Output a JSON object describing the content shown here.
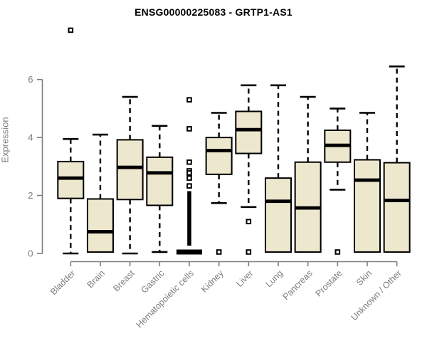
{
  "chart_data": {
    "type": "boxplot",
    "title": "ENSG00000225083 - GRTP1-AS1",
    "ylabel": "Expression",
    "xlabel": "",
    "yticks": [
      0,
      2,
      4,
      6
    ],
    "ylim": [
      0,
      6.6
    ],
    "grid": false,
    "legend": "none",
    "categories": [
      "Bladder",
      "Brain",
      "Breast",
      "Gastric",
      "Hematopoietic cells",
      "Kidney",
      "Liver",
      "Lung",
      "Pancreas",
      "Prostate",
      "Skin",
      "Unknown / Other"
    ],
    "series": [
      {
        "label": "Bladder",
        "low": 0,
        "q1": 1.9,
        "median": 2.6,
        "q3": 3.17,
        "high": 3.95,
        "outliers": [
          7.7
        ]
      },
      {
        "label": "Brain",
        "low": 0.05,
        "q1": 0.05,
        "median": 0.75,
        "q3": 1.88,
        "high": 4.1,
        "outliers": []
      },
      {
        "label": "Breast",
        "low": 0,
        "q1": 1.86,
        "median": 2.97,
        "q3": 3.92,
        "high": 5.4,
        "outliers": []
      },
      {
        "label": "Gastric",
        "low": 0.05,
        "q1": 1.66,
        "median": 2.78,
        "q3": 3.32,
        "high": 4.4,
        "outliers": []
      },
      {
        "label": "Hematopoietic cells",
        "low": 0.05,
        "q1": 0.05,
        "median": 0.05,
        "q3": 0.05,
        "high": 0.05,
        "outliers": [
          5.3,
          4.3,
          3.15,
          2.85,
          2.78,
          2.6,
          2.33
        ],
        "dense_outlier_range": {
          "from": 2.15,
          "to": 0.27
        }
      },
      {
        "label": "Kidney",
        "low": 1.74,
        "q1": 2.73,
        "median": 3.55,
        "q3": 4.0,
        "high": 4.85,
        "outliers": [
          0.05
        ]
      },
      {
        "label": "Liver",
        "low": 1.6,
        "q1": 3.45,
        "median": 4.27,
        "q3": 4.9,
        "high": 5.8,
        "outliers": [
          1.1,
          0.05
        ]
      },
      {
        "label": "Lung",
        "low": 0.05,
        "q1": 0.05,
        "median": 1.8,
        "q3": 2.6,
        "high": 5.8,
        "outliers": []
      },
      {
        "label": "Pancreas",
        "low": 0.05,
        "q1": 0.05,
        "median": 1.57,
        "q3": 3.15,
        "high": 5.4,
        "outliers": []
      },
      {
        "label": "Prostate",
        "low": 2.2,
        "q1": 3.15,
        "median": 3.73,
        "q3": 4.25,
        "high": 5.0,
        "outliers": [
          0.05
        ]
      },
      {
        "label": "Skin",
        "low": 0.05,
        "q1": 0.05,
        "median": 2.53,
        "q3": 3.23,
        "high": 4.85,
        "outliers": []
      },
      {
        "label": "Unknown / Other",
        "low": 0.05,
        "q1": 0.05,
        "median": 1.83,
        "q3": 3.13,
        "high": 6.45,
        "outliers": []
      }
    ],
    "colors": {
      "box_fill": "#ede7ce",
      "box_stroke": "#000000",
      "median": "#000000",
      "whisker": "#000000",
      "outlier_fill": "#ffffff",
      "outlier_stroke": "#000000",
      "axis": "#7c7c7c",
      "axis_text": "#7c7c7c",
      "title": "#000000",
      "background": "#ffffff"
    }
  }
}
